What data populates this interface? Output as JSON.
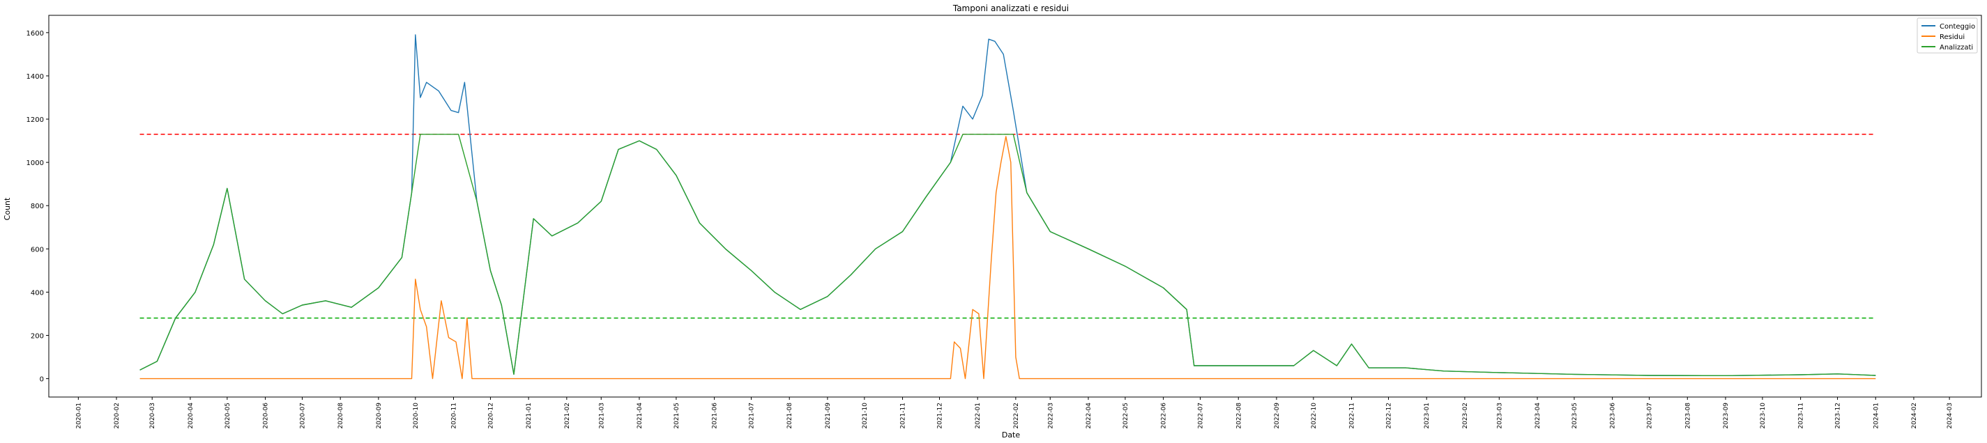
{
  "chart_data": {
    "type": "line",
    "title": "Tamponi analizzati e residui",
    "xlabel": "Date",
    "ylabel": "Count",
    "xlim": [
      "2019-12-08",
      "2024-03-27"
    ],
    "ylim": [
      -85,
      1680
    ],
    "x_ticks": [
      "2020-01",
      "2020-02",
      "2020-03",
      "2020-04",
      "2020-05",
      "2020-06",
      "2020-07",
      "2020-08",
      "2020-09",
      "2020-10",
      "2020-11",
      "2020-12",
      "2021-01",
      "2021-02",
      "2021-03",
      "2021-04",
      "2021-05",
      "2021-06",
      "2021-07",
      "2021-08",
      "2021-09",
      "2021-10",
      "2021-11",
      "2021-12",
      "2022-01",
      "2022-02",
      "2022-03",
      "2022-04",
      "2022-05",
      "2022-06",
      "2022-07",
      "2022-08",
      "2022-09",
      "2022-10",
      "2022-11",
      "2022-12",
      "2023-01",
      "2023-02",
      "2023-03",
      "2023-04",
      "2023-05",
      "2023-06",
      "2023-07",
      "2023-08",
      "2023-09",
      "2023-10",
      "2023-11",
      "2023-12",
      "2024-01",
      "2024-02",
      "2024-03"
    ],
    "y_ticks": [
      0,
      200,
      400,
      600,
      800,
      1000,
      1200,
      1400,
      1600
    ],
    "legend": {
      "position": "top-right",
      "entries": [
        "Conteggio",
        "Residui",
        "Analizzati"
      ]
    },
    "grid": false,
    "series": [
      {
        "name": "Conteggio",
        "color": "#1f77b4",
        "points": [
          [
            "2020-02-20",
            40
          ],
          [
            "2020-03-05",
            80
          ],
          [
            "2020-03-20",
            280
          ],
          [
            "2020-04-05",
            400
          ],
          [
            "2020-04-20",
            620
          ],
          [
            "2020-05-01",
            880
          ],
          [
            "2020-05-15",
            460
          ],
          [
            "2020-06-01",
            360
          ],
          [
            "2020-06-15",
            300
          ],
          [
            "2020-07-01",
            340
          ],
          [
            "2020-07-20",
            360
          ],
          [
            "2020-08-10",
            330
          ],
          [
            "2020-09-01",
            420
          ],
          [
            "2020-09-20",
            560
          ],
          [
            "2020-09-28",
            860
          ],
          [
            "2020-10-01",
            1590
          ],
          [
            "2020-10-05",
            1300
          ],
          [
            "2020-10-10",
            1370
          ],
          [
            "2020-10-20",
            1330
          ],
          [
            "2020-10-30",
            1240
          ],
          [
            "2020-11-05",
            1230
          ],
          [
            "2020-11-10",
            1370
          ],
          [
            "2020-11-20",
            820
          ],
          [
            "2020-12-01",
            500
          ],
          [
            "2020-12-10",
            340
          ],
          [
            "2020-12-20",
            20
          ],
          [
            "2021-01-05",
            740
          ],
          [
            "2021-01-20",
            660
          ],
          [
            "2021-02-10",
            720
          ],
          [
            "2021-03-01",
            820
          ],
          [
            "2021-03-15",
            1060
          ],
          [
            "2021-04-01",
            1100
          ],
          [
            "2021-04-15",
            1060
          ],
          [
            "2021-05-01",
            940
          ],
          [
            "2021-05-20",
            720
          ],
          [
            "2021-06-10",
            600
          ],
          [
            "2021-07-01",
            500
          ],
          [
            "2021-07-20",
            400
          ],
          [
            "2021-08-10",
            320
          ],
          [
            "2021-09-01",
            380
          ],
          [
            "2021-09-20",
            480
          ],
          [
            "2021-10-10",
            600
          ],
          [
            "2021-11-01",
            680
          ],
          [
            "2021-11-20",
            840
          ],
          [
            "2021-12-10",
            1000
          ],
          [
            "2021-12-20",
            1260
          ],
          [
            "2021-12-28",
            1200
          ],
          [
            "2022-01-05",
            1310
          ],
          [
            "2022-01-10",
            1570
          ],
          [
            "2022-01-15",
            1560
          ],
          [
            "2022-01-22",
            1500
          ],
          [
            "2022-01-30",
            1240
          ],
          [
            "2022-02-10",
            860
          ],
          [
            "2022-03-01",
            680
          ],
          [
            "2022-04-01",
            600
          ],
          [
            "2022-05-01",
            520
          ],
          [
            "2022-06-01",
            420
          ],
          [
            "2022-06-20",
            320
          ],
          [
            "2022-06-26",
            60
          ],
          [
            "2022-07-20",
            60
          ],
          [
            "2022-08-15",
            60
          ],
          [
            "2022-09-15",
            60
          ],
          [
            "2022-10-01",
            130
          ],
          [
            "2022-10-20",
            60
          ],
          [
            "2022-11-01",
            160
          ],
          [
            "2022-11-15",
            50
          ],
          [
            "2022-12-15",
            50
          ],
          [
            "2023-01-15",
            35
          ],
          [
            "2023-03-01",
            28
          ],
          [
            "2023-05-01",
            20
          ],
          [
            "2023-07-01",
            15
          ],
          [
            "2023-09-01",
            14
          ],
          [
            "2023-11-01",
            18
          ],
          [
            "2023-12-01",
            22
          ],
          [
            "2024-01-01",
            15
          ]
        ]
      },
      {
        "name": "Residui",
        "color": "#ff7f0e",
        "points": [
          [
            "2020-02-20",
            0
          ],
          [
            "2020-09-28",
            0
          ],
          [
            "2020-10-01",
            460
          ],
          [
            "2020-10-05",
            320
          ],
          [
            "2020-10-10",
            240
          ],
          [
            "2020-10-15",
            0
          ],
          [
            "2020-10-22",
            360
          ],
          [
            "2020-10-28",
            190
          ],
          [
            "2020-11-03",
            170
          ],
          [
            "2020-11-08",
            0
          ],
          [
            "2020-11-12",
            280
          ],
          [
            "2020-11-16",
            0
          ],
          [
            "2021-12-10",
            0
          ],
          [
            "2021-12-13",
            170
          ],
          [
            "2021-12-18",
            140
          ],
          [
            "2021-12-22",
            0
          ],
          [
            "2021-12-28",
            320
          ],
          [
            "2022-01-02",
            300
          ],
          [
            "2022-01-06",
            0
          ],
          [
            "2022-01-12",
            540
          ],
          [
            "2022-01-16",
            860
          ],
          [
            "2022-01-20",
            1000
          ],
          [
            "2022-01-24",
            1120
          ],
          [
            "2022-01-28",
            1000
          ],
          [
            "2022-02-01",
            100
          ],
          [
            "2022-02-04",
            0
          ],
          [
            "2023-04-01",
            0
          ],
          [
            "2024-01-01",
            0
          ]
        ]
      },
      {
        "name": "Analizzati",
        "color": "#2ca02c",
        "points": [
          [
            "2020-02-20",
            40
          ],
          [
            "2020-03-05",
            80
          ],
          [
            "2020-03-20",
            280
          ],
          [
            "2020-04-05",
            400
          ],
          [
            "2020-04-20",
            620
          ],
          [
            "2020-05-01",
            880
          ],
          [
            "2020-05-15",
            460
          ],
          [
            "2020-06-01",
            360
          ],
          [
            "2020-06-15",
            300
          ],
          [
            "2020-07-01",
            340
          ],
          [
            "2020-07-20",
            360
          ],
          [
            "2020-08-10",
            330
          ],
          [
            "2020-09-01",
            420
          ],
          [
            "2020-09-20",
            560
          ],
          [
            "2020-09-28",
            860
          ],
          [
            "2020-10-05",
            1130
          ],
          [
            "2020-10-20",
            1130
          ],
          [
            "2020-11-05",
            1130
          ],
          [
            "2020-11-20",
            820
          ],
          [
            "2020-12-01",
            500
          ],
          [
            "2020-12-10",
            340
          ],
          [
            "2020-12-20",
            20
          ],
          [
            "2021-01-05",
            740
          ],
          [
            "2021-01-20",
            660
          ],
          [
            "2021-02-10",
            720
          ],
          [
            "2021-03-01",
            820
          ],
          [
            "2021-03-15",
            1060
          ],
          [
            "2021-04-01",
            1100
          ],
          [
            "2021-04-15",
            1060
          ],
          [
            "2021-05-01",
            940
          ],
          [
            "2021-05-20",
            720
          ],
          [
            "2021-06-10",
            600
          ],
          [
            "2021-07-01",
            500
          ],
          [
            "2021-07-20",
            400
          ],
          [
            "2021-08-10",
            320
          ],
          [
            "2021-09-01",
            380
          ],
          [
            "2021-09-20",
            480
          ],
          [
            "2021-10-10",
            600
          ],
          [
            "2021-11-01",
            680
          ],
          [
            "2021-11-20",
            840
          ],
          [
            "2021-12-10",
            1000
          ],
          [
            "2021-12-20",
            1130
          ],
          [
            "2022-01-10",
            1130
          ],
          [
            "2022-01-30",
            1130
          ],
          [
            "2022-02-10",
            860
          ],
          [
            "2022-03-01",
            680
          ],
          [
            "2022-04-01",
            600
          ],
          [
            "2022-05-01",
            520
          ],
          [
            "2022-06-01",
            420
          ],
          [
            "2022-06-20",
            320
          ],
          [
            "2022-06-26",
            60
          ],
          [
            "2022-07-20",
            60
          ],
          [
            "2022-08-15",
            60
          ],
          [
            "2022-09-15",
            60
          ],
          [
            "2022-10-01",
            130
          ],
          [
            "2022-10-20",
            60
          ],
          [
            "2022-11-01",
            160
          ],
          [
            "2022-11-15",
            50
          ],
          [
            "2022-12-15",
            50
          ],
          [
            "2023-01-15",
            35
          ],
          [
            "2023-03-01",
            28
          ],
          [
            "2023-05-01",
            20
          ],
          [
            "2023-07-01",
            15
          ],
          [
            "2023-09-01",
            14
          ],
          [
            "2023-11-01",
            18
          ],
          [
            "2023-12-01",
            22
          ],
          [
            "2024-01-01",
            15
          ]
        ]
      }
    ],
    "reference_lines": [
      {
        "color": "#ff0000",
        "style": "dashed",
        "y": 1130,
        "x_start": "2020-02-20",
        "x_end": "2024-01-01"
      },
      {
        "color": "#00aa00",
        "style": "dashed",
        "y": 280,
        "x_start": "2020-02-20",
        "x_end": "2024-01-01"
      }
    ]
  }
}
